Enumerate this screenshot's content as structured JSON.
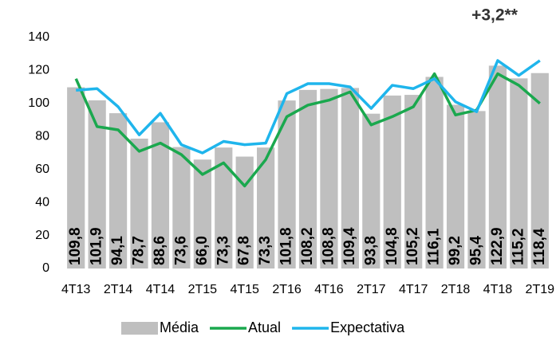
{
  "chart_data": {
    "type": "bar",
    "annotation": "+3,2**",
    "categories": [
      "4T13",
      null,
      "2T14",
      null,
      "4T14",
      null,
      "2T15",
      null,
      "4T15",
      null,
      "2T16",
      null,
      "4T16",
      null,
      "2T17",
      null,
      "4T17",
      null,
      "2T18",
      null,
      "4T18",
      null,
      "2T19"
    ],
    "series": [
      {
        "name": "Média",
        "type": "bar",
        "color": "#bfbfbf",
        "values": [
          109.8,
          101.9,
          94.1,
          78.7,
          88.6,
          73.6,
          66.0,
          73.3,
          67.8,
          73.3,
          101.8,
          108.2,
          108.8,
          109.4,
          93.8,
          104.8,
          105.2,
          116.1,
          99.2,
          95.4,
          122.9,
          115.2,
          118.4
        ],
        "value_labels": [
          "109,8",
          "101,9",
          "94,1",
          "78,7",
          "88,6",
          "73,6",
          "66,0",
          "73,3",
          "67,8",
          "73,3",
          "101,8",
          "108,2",
          "108,8",
          "109,4",
          "93,8",
          "104,8",
          "105,2",
          "116,1",
          "99,2",
          "95,4",
          "122,9",
          "115,2",
          "118,4"
        ]
      },
      {
        "name": "Atual",
        "type": "line",
        "color": "#1aa84e",
        "values": [
          115,
          86,
          84,
          71,
          76,
          69,
          57,
          64,
          50,
          66,
          92,
          99,
          102,
          107,
          87,
          92,
          98,
          118,
          93,
          96,
          118,
          111,
          100
        ]
      },
      {
        "name": "Expectativa",
        "type": "line",
        "color": "#1fb5ec",
        "values": [
          108,
          109,
          98,
          81,
          94,
          75,
          70,
          77,
          75,
          76,
          106,
          112,
          112,
          110,
          97,
          111,
          109,
          115,
          101,
          95,
          126,
          117,
          126
        ]
      }
    ],
    "ylim": [
      0,
      140
    ],
    "yticks": [
      0,
      20,
      40,
      60,
      80,
      100,
      120,
      140
    ],
    "grid": false,
    "legend": "bottom"
  }
}
